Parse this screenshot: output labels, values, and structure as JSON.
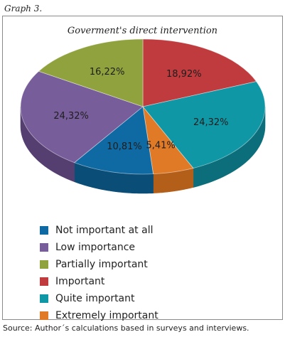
{
  "graph_label": "Graph 3.",
  "source": "Source: Author´s calculations based in surveys and interviews.",
  "chart_data": {
    "type": "pie",
    "title": "Goverment's direct intervention",
    "start_angle_deg": 90,
    "direction": "clockwise",
    "legend_position": "bottom-left",
    "slices": [
      {
        "label": "Important",
        "value": 18.92,
        "display": "18,92%",
        "color": "#c03b3d",
        "side": "#8f2a2c"
      },
      {
        "label": "Quite important",
        "value": 24.32,
        "display": "24,32%",
        "color": "#0f97a6",
        "side": "#0b6e7a"
      },
      {
        "label": "Extremely important",
        "value": 5.41,
        "display": "5,41%",
        "color": "#e07a26",
        "side": "#b35f1a"
      },
      {
        "label": "Not important at all",
        "value": 10.81,
        "display": "10,81%",
        "color": "#0f6aa3",
        "side": "#0a4d77"
      },
      {
        "label": "Low importance",
        "value": 24.32,
        "display": "24,32%",
        "color": "#785d9b",
        "side": "#553f71"
      },
      {
        "label": "Partially important",
        "value": 16.22,
        "display": "16,22%",
        "color": "#8fa23d",
        "side": "#687730"
      }
    ],
    "legend": [
      {
        "label": "Not important at all",
        "color": "#0f6aa3"
      },
      {
        "label": "Low importance",
        "color": "#785d9b"
      },
      {
        "label": "Partially important",
        "color": "#8fa23d"
      },
      {
        "label": "Important",
        "color": "#c03b3d"
      },
      {
        "label": "Quite important",
        "color": "#0f97a6"
      },
      {
        "label": "Extremely important",
        "color": "#e07a26"
      }
    ]
  }
}
